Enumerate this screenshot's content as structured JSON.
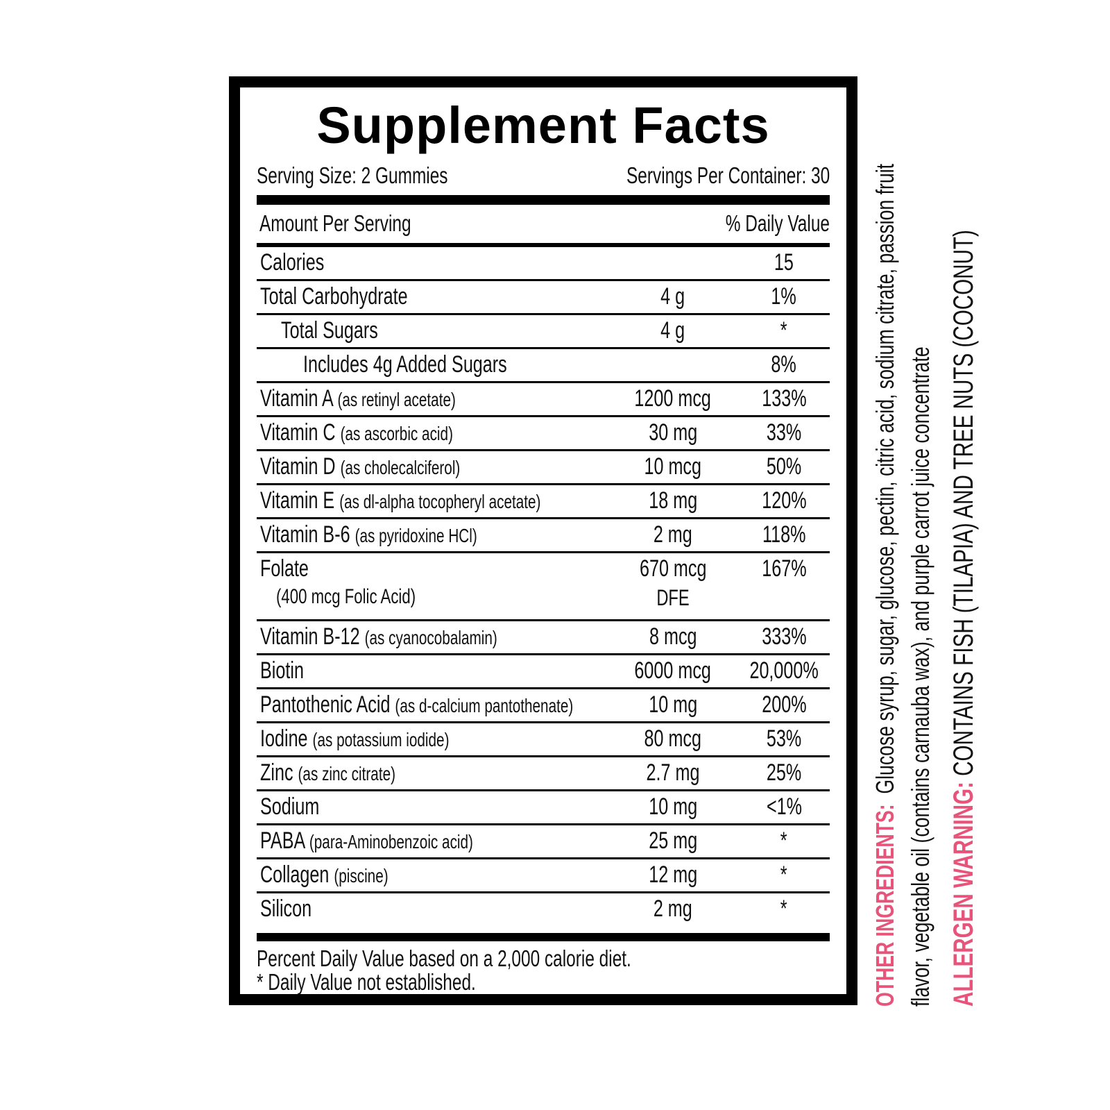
{
  "title": "Supplement Facts",
  "serving_size": "Serving Size: 2 Gummies",
  "servings_per_container": "Servings Per Container: 30",
  "header": {
    "amount": "Amount Per Serving",
    "dv": "% Daily Value"
  },
  "rows": [
    {
      "name": "Calories",
      "sub": "",
      "amount": "",
      "dv": "15",
      "indent": 0
    },
    {
      "name": "Total Carbohydrate",
      "sub": "",
      "amount": "4 g",
      "dv": "1%",
      "indent": 0
    },
    {
      "name": "Total Sugars",
      "sub": "",
      "amount": "4 g",
      "dv": "*",
      "indent": 1
    },
    {
      "name": "Includes 4g Added Sugars",
      "sub": "",
      "amount": "",
      "dv": "8%",
      "indent": 2
    },
    {
      "name": "Vitamin A",
      "sub": "(as retinyl acetate)",
      "amount": "1200 mcg",
      "dv": "133%",
      "indent": 0
    },
    {
      "name": "Vitamin C",
      "sub": "(as ascorbic acid)",
      "amount": "30 mg",
      "dv": "33%",
      "indent": 0
    },
    {
      "name": "Vitamin D",
      "sub": "(as cholecalciferol)",
      "amount": "10 mcg",
      "dv": "50%",
      "indent": 0
    },
    {
      "name": "Vitamin E",
      "sub": "(as dl-alpha tocopheryl acetate)",
      "amount": "18 mg",
      "dv": "120%",
      "indent": 0
    },
    {
      "name": "Vitamin B-6",
      "sub": "(as pyridoxine HCl)",
      "amount": "2 mg",
      "dv": "118%",
      "indent": 0
    },
    {
      "name": "Folate",
      "sub": "",
      "note": "(400 mcg Folic Acid)",
      "amount": "670 mcg",
      "amount2": "DFE",
      "dv": "167%",
      "indent": 0
    },
    {
      "name": "Vitamin B-12",
      "sub": "(as cyanocobalamin)",
      "amount": "8 mcg",
      "dv": "333%",
      "indent": 0
    },
    {
      "name": "Biotin",
      "sub": "",
      "amount": "6000 mcg",
      "dv": "20,000%",
      "indent": 0
    },
    {
      "name": "Pantothenic Acid",
      "sub": "(as d-calcium pantothenate)",
      "amount": "10 mg",
      "dv": "200%",
      "indent": 0
    },
    {
      "name": "Iodine",
      "sub": "(as potassium iodide)",
      "amount": "80 mcg",
      "dv": "53%",
      "indent": 0
    },
    {
      "name": "Zinc",
      "sub": "(as zinc citrate)",
      "amount": "2.7 mg",
      "dv": "25%",
      "indent": 0
    },
    {
      "name": "Sodium",
      "sub": "",
      "amount": "10 mg",
      "dv": "<1%",
      "indent": 0
    },
    {
      "name": "PABA",
      "sub": "(para-Aminobenzoic acid)",
      "amount": "25 mg",
      "dv": "*",
      "indent": 0
    },
    {
      "name": "Collagen",
      "sub": "(piscine)",
      "amount": "12 mg",
      "dv": "*",
      "indent": 0
    },
    {
      "name": "Silicon",
      "sub": "",
      "amount": "2 mg",
      "dv": "*",
      "indent": 0
    }
  ],
  "footer": {
    "line1": "Percent Daily Value based on a 2,000 calorie diet.",
    "line2": "* Daily Value not established."
  },
  "other_ingredients": {
    "label": "OTHER INGREDIENTS:",
    "line1": "Glucose syrup, sugar, glucose, pectin, citric acid, sodium citrate, passion fruit",
    "line2": "flavor, vegetable oil (contains carnauba wax), and purple carrot juice concentrate"
  },
  "allergen": {
    "label": "ALLERGEN WARNING:",
    "text": "CONTAINS FISH (TILAPIA) AND TREE NUTS (COCONUT)"
  },
  "colors": {
    "accent": "#e8537a",
    "text": "#111111",
    "border": "#000000"
  }
}
